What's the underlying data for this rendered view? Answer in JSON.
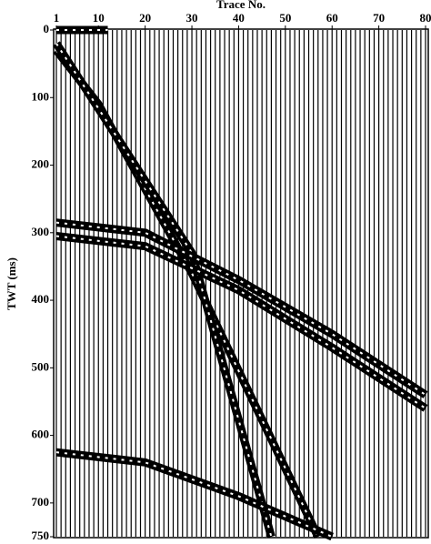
{
  "chart_data": {
    "type": "seismic",
    "title": "Trace No.",
    "y_label": "TWT  (ms)",
    "xlim": [
      1,
      80
    ],
    "xticks": [
      1,
      10,
      20,
      30,
      40,
      50,
      60,
      70,
      80
    ],
    "ylim": [
      0,
      750
    ],
    "yticks": [
      0,
      100,
      200,
      300,
      400,
      500,
      600,
      700,
      750
    ],
    "y_inverted": true,
    "color": "#000000",
    "series": [
      {
        "x": [
          1,
          12
        ],
        "values": [
          0,
          0
        ]
      },
      {
        "x": [
          1,
          10,
          30,
          57
        ],
        "values": [
          30,
          110,
          360,
          750
        ]
      },
      {
        "x": [
          1,
          30,
          47
        ],
        "values": [
          20,
          330,
          750
        ]
      },
      {
        "x": [
          1,
          20,
          40,
          60,
          80
        ],
        "values": [
          285,
          300,
          370,
          450,
          540
        ]
      },
      {
        "x": [
          1,
          20,
          40,
          60,
          80
        ],
        "values": [
          305,
          320,
          385,
          470,
          560
        ]
      },
      {
        "x": [
          1,
          20,
          40,
          60
        ],
        "values": [
          625,
          640,
          690,
          750
        ]
      }
    ]
  }
}
